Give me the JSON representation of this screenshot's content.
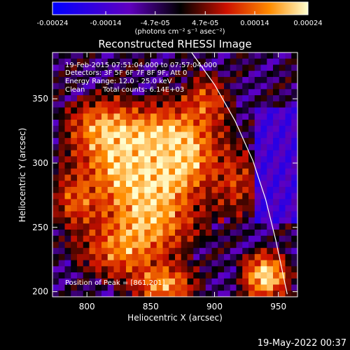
{
  "chart_data": {
    "type": "heatmap",
    "title": "Reconstructed RHESSI Image",
    "xlabel": "Heliocentric X (arcsec)",
    "ylabel": "Heliocentric Y (arcsec)",
    "xlim": [
      773,
      965
    ],
    "ylim": [
      196,
      386
    ],
    "x_ticks": [
      800,
      850,
      900,
      950
    ],
    "y_ticks": [
      200,
      250,
      300,
      350
    ],
    "colorbar": {
      "min": -0.00024,
      "max": 0.00024,
      "tick_values": [
        -0.00024,
        -0.00014,
        -4.7e-05,
        4.7e-05,
        0.00014,
        0.00024
      ],
      "tick_labels": [
        "-0.00024",
        "-0.00014",
        "-4.7e-05",
        "4.7e-05",
        "0.00014",
        "0.00024"
      ],
      "unit_label": "(photons cm⁻² s⁻¹ asec⁻²)"
    },
    "annotations": {
      "time_range": "19-Feb-2015 07:51:04.000 to 07:57:04.000",
      "detectors": "Detectors: 3F 5F 6F 7F 8F 9F, Att 0",
      "energy": "Energy Range: 12.0 - 25.0 keV",
      "clean_label": "Clean",
      "total_counts": "Total counts: 6.14E+03",
      "peak": "Position of Peak = [861,201]"
    },
    "limb_curve": [
      [
        882,
        386
      ],
      [
        900,
        361
      ],
      [
        916,
        333
      ],
      [
        930,
        302
      ],
      [
        940,
        272
      ],
      [
        948,
        240
      ],
      [
        955,
        207
      ],
      [
        957,
        198
      ]
    ],
    "emission_sources": [
      {
        "x": 835,
        "y": 300,
        "sx": 28,
        "sy": 24,
        "amp": 1.0
      },
      {
        "x": 870,
        "y": 310,
        "sx": 22,
        "sy": 22,
        "amp": 0.95
      },
      {
        "x": 810,
        "y": 330,
        "sx": 18,
        "sy": 14,
        "amp": 0.6
      },
      {
        "x": 850,
        "y": 255,
        "sx": 25,
        "sy": 18,
        "amp": 0.75
      },
      {
        "x": 825,
        "y": 230,
        "sx": 22,
        "sy": 14,
        "amp": 0.6
      },
      {
        "x": 861,
        "y": 205,
        "sx": 16,
        "sy": 10,
        "amp": 0.85
      },
      {
        "x": 940,
        "y": 212,
        "sx": 12,
        "sy": 12,
        "amp": 1.15
      },
      {
        "x": 895,
        "y": 350,
        "sx": 12,
        "sy": 14,
        "amp": 0.5
      },
      {
        "x": 918,
        "y": 285,
        "sx": 12,
        "sy": 18,
        "amp": 0.45
      },
      {
        "x": 790,
        "y": 270,
        "sx": 12,
        "sy": 14,
        "amp": 0.5
      }
    ]
  },
  "footer": {
    "timestamp": "19-May-2022 00:37"
  }
}
